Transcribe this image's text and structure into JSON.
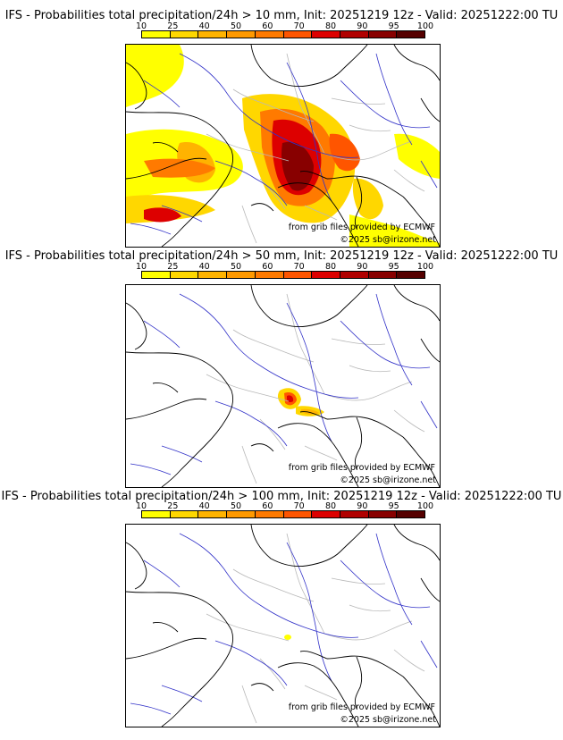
{
  "colorbar": {
    "ticks": [
      "10",
      "25",
      "40",
      "50",
      "60",
      "70",
      "80",
      "90",
      "95",
      "100"
    ],
    "colors": [
      "#ffff00",
      "#ffd700",
      "#ffb300",
      "#ff9900",
      "#ff7a00",
      "#ff5500",
      "#dd0000",
      "#b00000",
      "#880000",
      "#550000"
    ]
  },
  "panels": [
    {
      "title": "IFS - Probabilities total precipitation/24h > 10 mm, Init: 20251219 12z - Valid: 20251222:00 TU",
      "threshold_mm": 10,
      "credit_source": "from grib files provided by ECMWF",
      "credit_copyright": "©2025 sb@irizone.net"
    },
    {
      "title": "IFS - Probabilities total precipitation/24h > 50 mm, Init: 20251219 12z - Valid: 20251222:00 TU",
      "threshold_mm": 50,
      "credit_source": "from grib files provided by ECMWF",
      "credit_copyright": "©2025 sb@irizone.net"
    },
    {
      "title": "IFS - Probabilities total precipitation/24h > 100 mm, Init: 20251219 12z - Valid: 20251222:00 TU",
      "threshold_mm": 100,
      "credit_source": "from grib files provided by ECMWF",
      "credit_copyright": "©2025 sb@irizone.net"
    }
  ],
  "map_colors": {
    "coastline": "#000000",
    "borders": "#b8b8b8",
    "rivers": "#3232c8"
  }
}
